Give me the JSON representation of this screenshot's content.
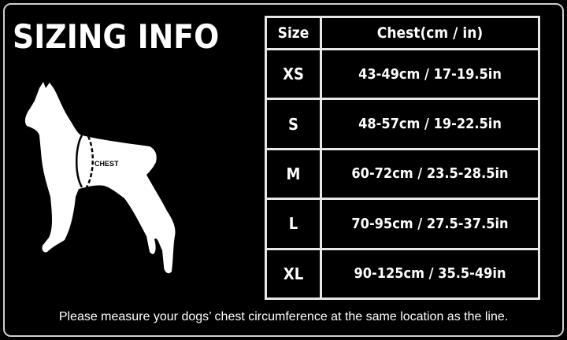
{
  "title": "SIZING INFO",
  "diagram": {
    "chest_label": "CHEST"
  },
  "table": {
    "headers": [
      "Size",
      "Chest(cm / in)"
    ],
    "rows": [
      {
        "size": "XS",
        "chest": "43-49cm / 17-19.5in"
      },
      {
        "size": "S",
        "chest": "48-57cm / 19-22.5in"
      },
      {
        "size": "M",
        "chest": "60-72cm / 23.5-28.5in"
      },
      {
        "size": "L",
        "chest": "70-95cm / 27.5-37.5in"
      },
      {
        "size": "XL",
        "chest": "90-125cm / 35.5-49in"
      }
    ]
  },
  "note": "Please measure your dogs’  chest circumference at the same location as the line."
}
